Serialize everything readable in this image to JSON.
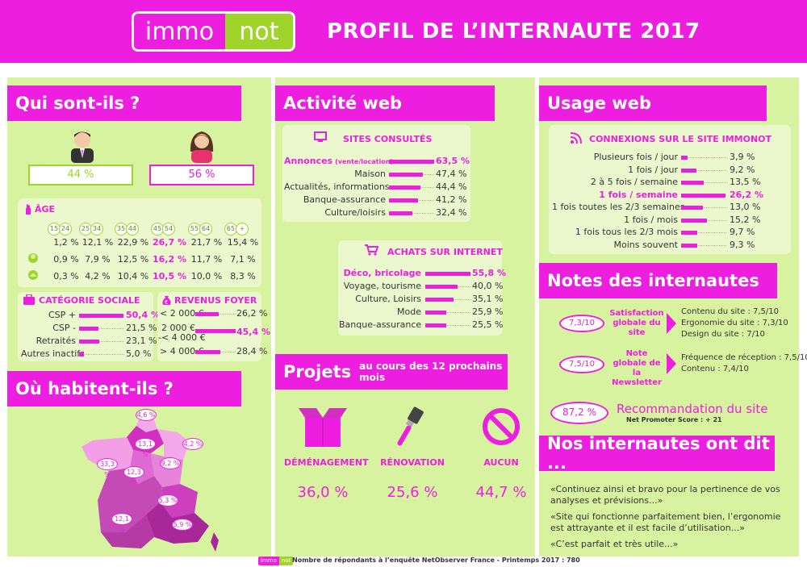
{
  "header": {
    "logo_left": "immo",
    "logo_right": "not",
    "title": "PROFIL DE L’INTERNAUTE 2017"
  },
  "colors": {
    "magenta": "#ee1ee0",
    "green": "#9fd52a",
    "panel": "#d8f3a0"
  },
  "qui": {
    "title": "Qui sont-ils ?",
    "men_pct": "44 %",
    "women_pct": "56 %",
    "age": {
      "title": "ÂGE",
      "groups": [
        {
          "from": "15",
          "to": "24"
        },
        {
          "from": "25",
          "to": "34"
        },
        {
          "from": "35",
          "to": "44"
        },
        {
          "from": "45",
          "to": "54"
        },
        {
          "from": "55",
          "to": "64"
        },
        {
          "from": "65",
          "to": "+"
        }
      ],
      "rows": [
        [
          "1,2 %",
          "12,1 %",
          "22,9 %",
          "26,7 %",
          "21,7 %",
          "15,4 %"
        ],
        [
          "0,9 %",
          "7,9 %",
          "12,5 %",
          "16,2 %",
          "11,7 %",
          "7,1 %"
        ],
        [
          "0,3 %",
          "4,2 %",
          "10,4 %",
          "10,5 %",
          "10,0 %",
          "8,3 %"
        ]
      ]
    },
    "categorie": {
      "title": "CATÉGORIE SOCIALE",
      "items": [
        {
          "label": "CSP +",
          "value": "50,4 %",
          "pct": 50.4
        },
        {
          "label": "CSP -",
          "value": "21,5 %",
          "pct": 21.5
        },
        {
          "label": "Retraités",
          "value": "23,1 %",
          "pct": 23.1
        },
        {
          "label": "Autres inactifs",
          "value": "5,0 %",
          "pct": 5.0
        }
      ]
    },
    "revenus": {
      "title": "REVENUS FOYER",
      "items": [
        {
          "label": "< 2 000 €",
          "value": "26,2 %",
          "pct": 26.2
        },
        {
          "label1": "2 000 €",
          "label2": "-< 4 000 €",
          "value": "45,4 %",
          "pct": 45.4
        },
        {
          "label": "> 4 000 €",
          "value": "28,4 %",
          "pct": 28.4
        }
      ]
    }
  },
  "ou": {
    "title": "Où habitent-ils ?",
    "regions": [
      "4,6 %",
      "13,1 %",
      "4,2 %",
      "33,3 %",
      "12,3 %",
      "9,2 %",
      "5,3 %",
      "12,1 %",
      "5,9 %"
    ]
  },
  "activite": {
    "title": "Activité web",
    "sites": {
      "title": "SITES CONSULTÉS",
      "items": [
        {
          "label": "Annonces",
          "label_small": "(vente/location)",
          "value": "63,5 %",
          "pct": 63.5
        },
        {
          "label": "Maison",
          "value": "47,4 %",
          "pct": 47.4
        },
        {
          "label": "Actualités, informations",
          "value": "44,4 %",
          "pct": 44.4
        },
        {
          "label": "Banque-assurance",
          "value": "41,2 %",
          "pct": 41.2
        },
        {
          "label": "Culture/loisirs",
          "value": "32,4 %",
          "pct": 32.4
        }
      ]
    },
    "achats": {
      "title": "ACHATS SUR INTERNET",
      "items": [
        {
          "label": "Déco, bricolage",
          "value": "55,8 %",
          "pct": 55.8
        },
        {
          "label": "Voyage, tourisme",
          "value": "40,0 %",
          "pct": 40.0
        },
        {
          "label": "Culture, Loisirs",
          "value": "35,1 %",
          "pct": 35.1
        },
        {
          "label": "Mode",
          "value": "25,9 %",
          "pct": 25.9
        },
        {
          "label": "Banque-assurance",
          "value": "25,5 %",
          "pct": 25.5
        }
      ]
    }
  },
  "projets": {
    "title": "Projets",
    "subtitle": "au cours des 12 prochains mois",
    "items": [
      {
        "label": "DÉMÉNAGEMENT",
        "value": "36,0 %"
      },
      {
        "label": "RÉNOVATION",
        "value": "25,6 %"
      },
      {
        "label": "AUCUN",
        "value": "44,7 %"
      }
    ]
  },
  "usage": {
    "title": "Usage web",
    "connexions": {
      "title": "CONNEXIONS SUR LE SITE IMMONOT",
      "items": [
        {
          "label": "Plusieurs fois / jour",
          "value": "3,9 %",
          "pct": 3.9
        },
        {
          "label": "1 fois / jour",
          "value": "9,2 %",
          "pct": 9.2
        },
        {
          "label": "2 à 5 fois / semaine",
          "value": "13,5 %",
          "pct": 13.5
        },
        {
          "label": "1 fois / semaine",
          "value": "26,2 %",
          "pct": 26.2
        },
        {
          "label": "1 fois toutes les 2/3 semaines",
          "value": "13,0 %",
          "pct": 13.0
        },
        {
          "label": "1 fois / mois",
          "value": "15,2 %",
          "pct": 15.2
        },
        {
          "label": "1 fois tous les 2/3 mois",
          "value": "9,7 %",
          "pct": 9.7
        },
        {
          "label": "Moins souvent",
          "value": "9,3 %",
          "pct": 9.3
        }
      ]
    }
  },
  "notes": {
    "title": "Notes des internautes",
    "satisfaction": {
      "score": "7,3/10",
      "label": "Satisfaction globale du site",
      "details": [
        "Contenu du site : 7,5/10",
        "Ergonomie du site : 7,3/10",
        "Design du site : 7/10"
      ]
    },
    "newsletter": {
      "score": "7,5/10",
      "label": "Note globale de la Newsletter",
      "details": [
        "Fréquence de réception : 7,5/10",
        "Contenu : 7,4/10"
      ]
    },
    "recommandation": {
      "score": "87,2 %",
      "label": "Recommandation du site",
      "nps": "Net Promoter Score : + 21"
    }
  },
  "dit": {
    "title": "Nos internautes ont dit ...",
    "quotes": [
      "«Continuez ainsi et bravo pour la pertinence de vos analyses et prévisions...»",
      "«Site qui fonctionne parfaitement bien, l’ergonomie est attrayante et il est facile d’utilisation...»",
      "«C’est parfait et très utile...»"
    ]
  },
  "footer": {
    "logo_left": "immo",
    "logo_right": "not",
    "text": "Nombre de répondants à l’enquête NetObserver France - Printemps 2017 : 780"
  }
}
